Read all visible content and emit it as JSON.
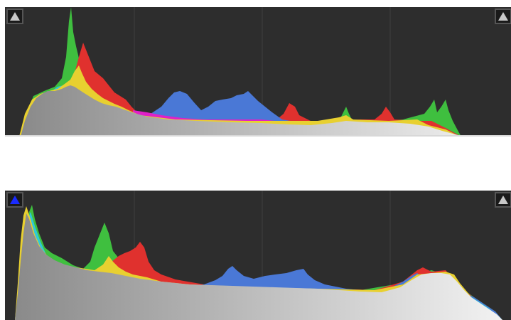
{
  "histograms": [
    {
      "id": "hist-top",
      "shadow_clip_indicator": {
        "icon": "triangle-up-icon",
        "active": false,
        "fill": "#c8c8c8"
      },
      "highlight_clip_indicator": {
        "icon": "triangle-up-icon",
        "active": false,
        "fill": "#c8c8c8"
      },
      "grid_divisions": 4
    },
    {
      "id": "hist-bottom",
      "shadow_clip_indicator": {
        "icon": "triangle-up-icon",
        "active": true,
        "fill": "#1a2bff"
      },
      "highlight_clip_indicator": {
        "icon": "triangle-up-icon",
        "active": false,
        "fill": "#c8c8c8"
      },
      "grid_divisions": 4
    }
  ],
  "colors": {
    "background": "#2d2d2d",
    "grid": "#3e3e3e",
    "red": "#e0312e",
    "green": "#3fbf3f",
    "blue": "#4a78d6",
    "yellow": "#e8d030",
    "cyan": "#30c8d8",
    "magenta": "#e020c8",
    "luminance_dark": "#8a8a8a",
    "luminance_light": "#ececec"
  }
}
